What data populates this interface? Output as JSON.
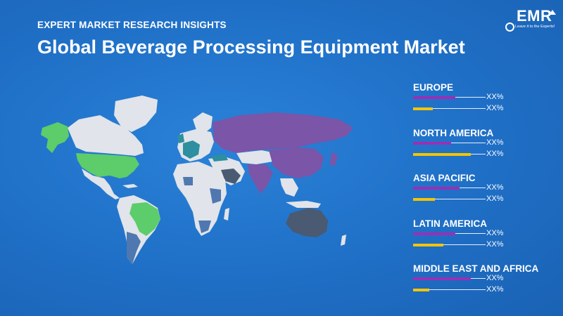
{
  "header": {
    "kicker": "EXPERT MARKET RESEARCH INSIGHTS",
    "title": "Global Beverage Processing Equipment Market"
  },
  "logo": {
    "text": "EMR",
    "tagline": "Leave it to the Experts!"
  },
  "colors": {
    "background": "#1f6fc6",
    "bar_series_1": "#9b2fb5",
    "bar_series_2": "#f5c400",
    "map_green": "#5ccd6a",
    "map_purple": "#7a55a8",
    "map_teal": "#2d8f9f",
    "map_slate": "#4a5a72",
    "map_steel": "#4f78b0",
    "map_base": "#e1e4ea"
  },
  "chart_data": {
    "type": "bar",
    "categories": [
      "EUROPE",
      "NORTH AMERICA",
      "ASIA PACIFIC",
      "LATIN AMERICA",
      "MIDDLE EAST AND AFRICA"
    ],
    "series": [
      {
        "values": [
          0.58,
          0.52,
          0.64,
          0.58,
          0.8
        ],
        "labels": [
          "XX%",
          "XX%",
          "XX%",
          "XX%",
          "XX%"
        ]
      },
      {
        "values": [
          0.27,
          0.8,
          0.3,
          0.42,
          0.22
        ],
        "labels": [
          "XX%",
          "XX%",
          "XX%",
          "XX%",
          "XX%"
        ]
      }
    ]
  }
}
